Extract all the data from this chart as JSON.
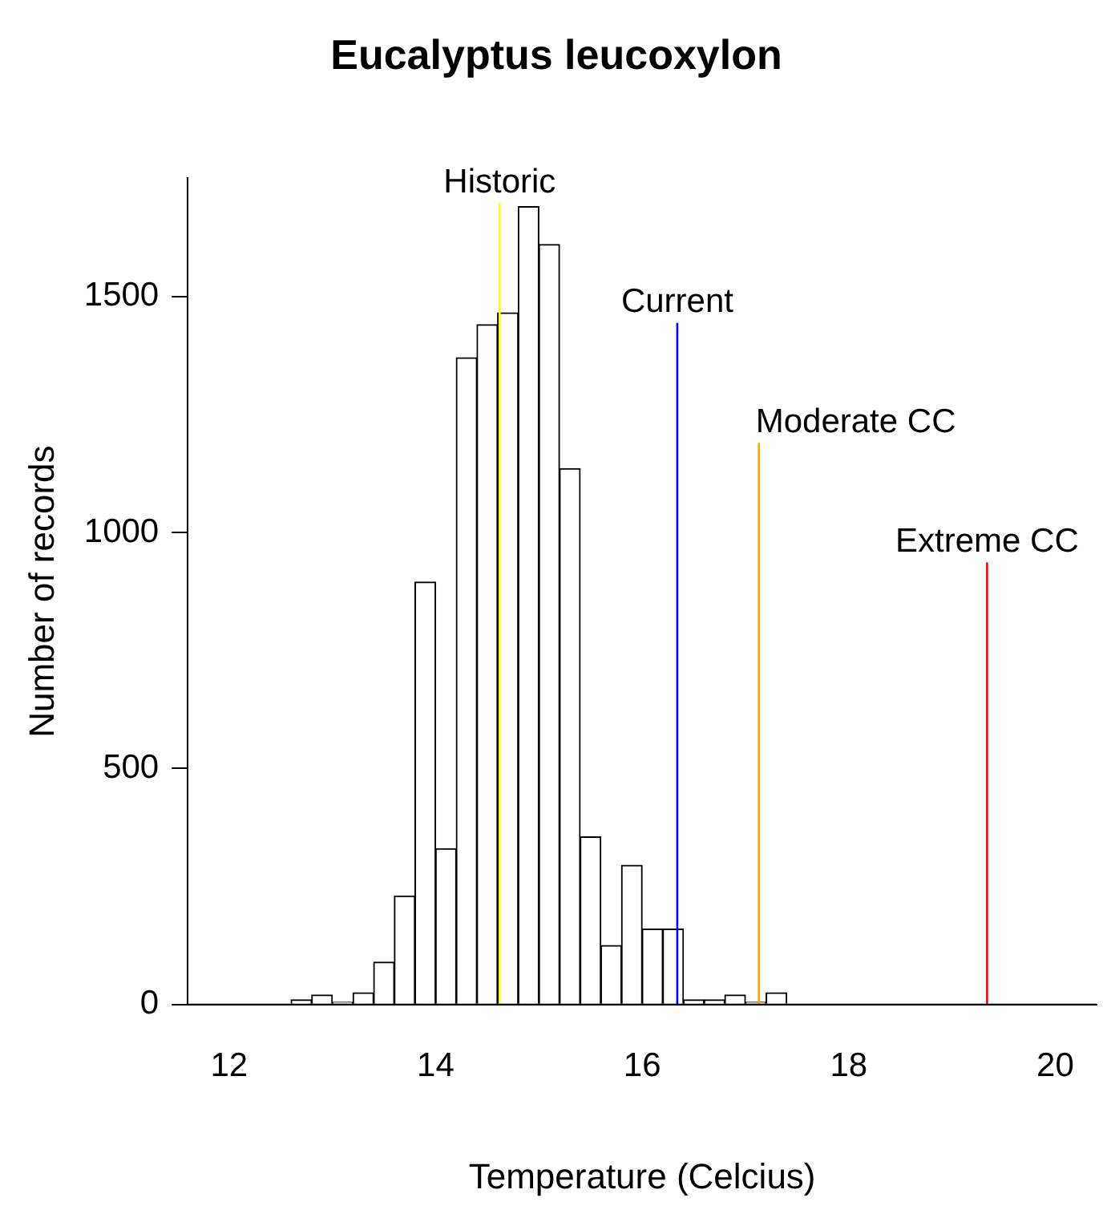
{
  "chart_data": {
    "type": "histogram",
    "title": "Eucalyptus leucoxylon",
    "xlabel": "Temperature (Celcius)",
    "ylabel": "Number of records",
    "bins": [
      12.6,
      12.8,
      13.0,
      13.2,
      13.4,
      13.6,
      13.8,
      14.0,
      14.2,
      14.4,
      14.6,
      14.8,
      15.0,
      15.2,
      15.4,
      15.6,
      15.8,
      16.0,
      16.2,
      16.4,
      16.6,
      16.8,
      17.0,
      17.2,
      17.4
    ],
    "values": [
      10,
      20,
      5,
      25,
      90,
      230,
      895,
      330,
      1370,
      1440,
      1465,
      1690,
      1610,
      1135,
      355,
      125,
      295,
      160,
      160,
      10,
      10,
      20,
      5,
      25
    ],
    "color": "#ffffff",
    "xlim": [
      11.6,
      20.4
    ],
    "xticks": [
      12,
      14,
      16,
      18,
      20
    ],
    "ylim": [
      0,
      1750
    ],
    "yticks": [
      0,
      500,
      1000,
      1500
    ],
    "grid": false,
    "legend": false,
    "ref_lines": [
      {
        "axis": "x",
        "value": 14.62,
        "label": "Historic",
        "color": "#ffff00"
      },
      {
        "axis": "x",
        "value": 16.34,
        "label": "Current",
        "color": "#0000ff"
      },
      {
        "axis": "x",
        "value": 17.13,
        "label": "Moderate CC",
        "color": "#ffa500"
      },
      {
        "axis": "x",
        "value": 19.34,
        "label": "Extreme CC",
        "color": "#ff0000"
      }
    ]
  }
}
